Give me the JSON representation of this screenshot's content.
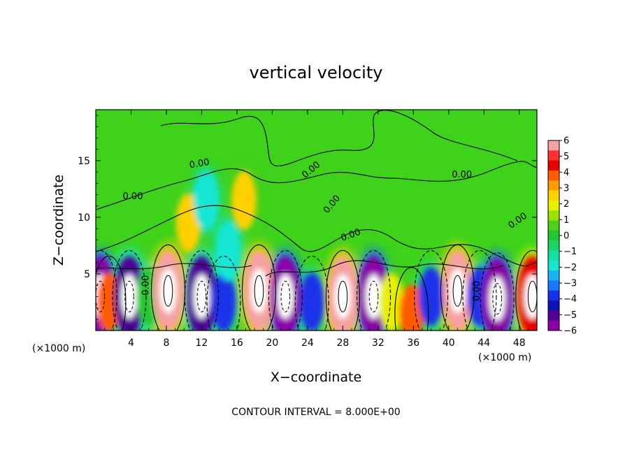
{
  "chart_data": {
    "type": "heatmap",
    "title": "vertical velocity",
    "xlabel": "X−coordinate",
    "ylabel": "Z−coordinate",
    "x_unit": "(×1000 m)",
    "y_unit": "(×1000 m)",
    "xlim": [
      0,
      50
    ],
    "ylim": [
      0,
      19.5
    ],
    "x_ticks": [
      4,
      8,
      12,
      16,
      20,
      24,
      28,
      32,
      36,
      40,
      44,
      48
    ],
    "y_ticks": [
      5,
      10,
      15
    ],
    "colorbar": {
      "ticks": [
        "6",
        "5",
        "4",
        "3",
        "2",
        "1",
        "0",
        "−1",
        "−2",
        "−3",
        "−4",
        "−5",
        "−6"
      ],
      "range": [
        -6,
        6
      ],
      "colors": [
        "#f5a0a0",
        "#ff3030",
        "#e80000",
        "#ff5a00",
        "#ff9c00",
        "#ffd000",
        "#e6f000",
        "#9ee000",
        "#4cd11a",
        "#21c832",
        "#1ad364",
        "#17dfa0",
        "#16e6d4",
        "#1bb4ef",
        "#1a78ff",
        "#1a30e8",
        "#1010b8",
        "#500094",
        "#8c00a8"
      ]
    },
    "contour_interval": "CONTOUR INTERVAL = 8.000E+00",
    "contour_labels": [
      "0.00",
      "0.00",
      "0.00",
      "0.00",
      "0.00",
      "0.00",
      "0.00",
      "0.00",
      "0.00"
    ],
    "cells": [
      {
        "x": 0.5,
        "z": 3.0,
        "w": -6,
        "note": "white core"
      },
      {
        "x": 1.5,
        "z": 2.5,
        "w": 4
      },
      {
        "x": 3.8,
        "z": 3.0,
        "w": -5
      },
      {
        "x": 6.0,
        "z": 3.0,
        "w": 0
      },
      {
        "x": 8.2,
        "z": 3.5,
        "w": 6
      },
      {
        "x": 12.0,
        "z": 3.0,
        "w": -5
      },
      {
        "x": 14.5,
        "z": 2.5,
        "w": -4
      },
      {
        "x": 18.5,
        "z": 3.5,
        "w": 6
      },
      {
        "x": 21.5,
        "z": 3.0,
        "w": -6
      },
      {
        "x": 24.5,
        "z": 2.5,
        "w": -4
      },
      {
        "x": 28.0,
        "z": 3.0,
        "w": 6
      },
      {
        "x": 31.5,
        "z": 3.0,
        "w": -6
      },
      {
        "x": 33.5,
        "z": 2.5,
        "w": 2
      },
      {
        "x": 35.8,
        "z": 1.5,
        "w": 4
      },
      {
        "x": 38.0,
        "z": 3.0,
        "w": -4
      },
      {
        "x": 41.0,
        "z": 3.5,
        "w": 6
      },
      {
        "x": 43.5,
        "z": 3.0,
        "w": -4
      },
      {
        "x": 45.5,
        "z": 2.8,
        "w": -6
      },
      {
        "x": 49.5,
        "z": 3.0,
        "w": 5
      },
      {
        "x": 10.5,
        "z": 9.5,
        "w": 3
      },
      {
        "x": 16.8,
        "z": 11.5,
        "w": 3
      },
      {
        "x": 12.5,
        "z": 11.5,
        "w": -2
      },
      {
        "x": 15.0,
        "z": 7.0,
        "w": -2
      }
    ]
  }
}
